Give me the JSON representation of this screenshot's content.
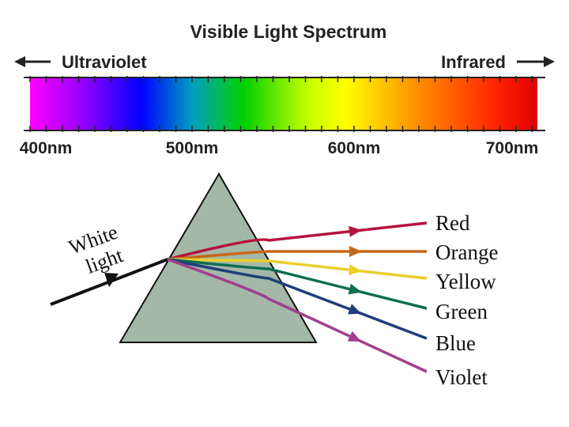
{
  "spectrum": {
    "title": "Visible Light Spectrum",
    "left_label": "Ultraviolet",
    "right_label": "Infrared",
    "ticks": [
      "400nm",
      "500nm",
      "600nm",
      "700nm"
    ]
  },
  "prism": {
    "input_label": [
      "White",
      "light"
    ],
    "rays": [
      {
        "label": "Red",
        "color": "#b5123c"
      },
      {
        "label": "Orange",
        "color": "#c8661a"
      },
      {
        "label": "Yellow",
        "color": "#e8cf2a"
      },
      {
        "label": "Green",
        "color": "#0f6e50"
      },
      {
        "label": "Blue",
        "color": "#1f3f7a"
      },
      {
        "label": "Violet",
        "color": "#a23d8c"
      }
    ]
  }
}
